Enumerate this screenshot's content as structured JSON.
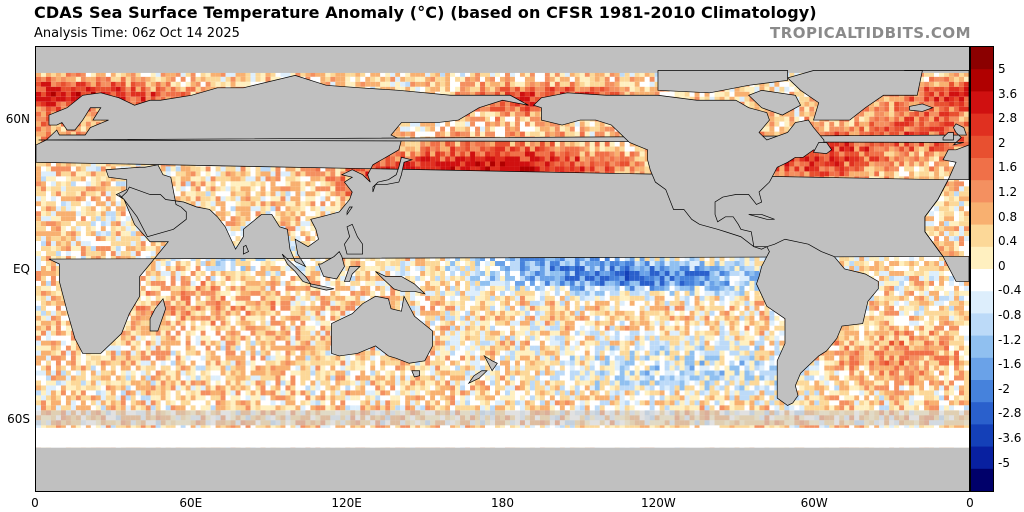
{
  "header": {
    "title": "CDAS Sea Surface Temperature Anomaly (°C) (based on CFSR 1981-2010 Climatology)",
    "analysis_time": "Analysis Time: 06z Oct 14 2025",
    "brand": "TROPICALTIDBITS.COM"
  },
  "colors": {
    "land": "#c0c0c0",
    "ice": "#ffffff",
    "ocean_neutral": "#ffffff"
  },
  "axes": {
    "lat_labels": [
      {
        "text": "60N",
        "lat": 60
      },
      {
        "text": "EQ",
        "lat": 0
      },
      {
        "text": "60S",
        "lat": -60
      }
    ],
    "lon_labels": [
      {
        "text": "0",
        "lon": 0
      },
      {
        "text": "60E",
        "lon": 60
      },
      {
        "text": "120E",
        "lon": 120
      },
      {
        "text": "180",
        "lon": 180
      },
      {
        "text": "120W",
        "lon": 240
      },
      {
        "text": "60W",
        "lon": 300
      },
      {
        "text": "0",
        "lon": 360
      }
    ]
  },
  "colorbar": {
    "labels": [
      "5",
      "3.6",
      "2.8",
      "2",
      "1.6",
      "1.2",
      "0.8",
      "0.4",
      "0",
      "-0.4",
      "-0.8",
      "-1.2",
      "-1.6",
      "-2",
      "-2.8",
      "-3.6",
      "-5"
    ],
    "colors": [
      "#8b0000",
      "#b00000",
      "#d01010",
      "#e03020",
      "#e85030",
      "#f07048",
      "#f49060",
      "#f8b070",
      "#fcd898",
      "#fff0c0",
      "#ffffff",
      "#ddeefc",
      "#bcdaf8",
      "#90c0f0",
      "#6aa2e8",
      "#4682dc",
      "#2a60cc",
      "#1440b8",
      "#0820a0",
      "#00006a"
    ]
  }
}
